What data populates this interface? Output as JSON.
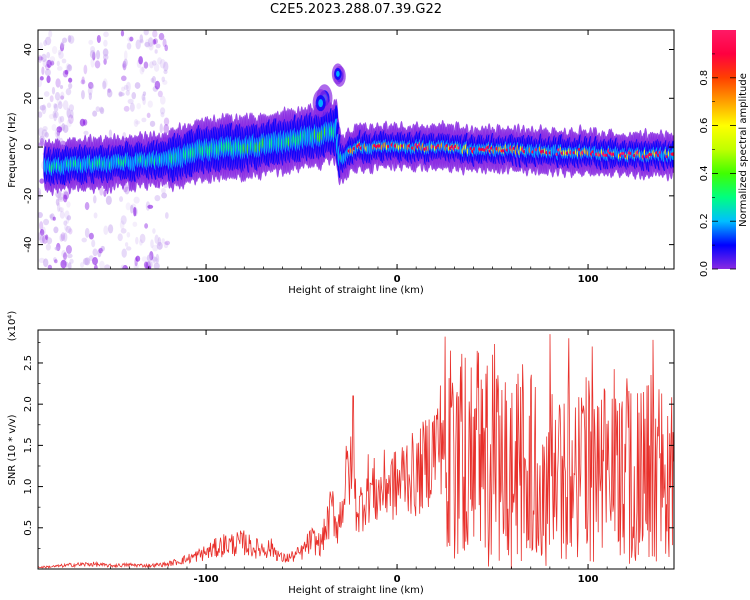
{
  "figure": {
    "title": "C2E5.2023.288.07.39.G22"
  },
  "chart_data": [
    {
      "type": "heatmap",
      "xlabel": "Height of straight line (km)",
      "ylabel": "Frequency (Hz)",
      "xlim": [
        -188,
        145
      ],
      "ylim": [
        -50,
        48
      ],
      "x_ticks": [
        -100,
        0,
        100
      ],
      "y_ticks": [
        -40,
        -20,
        0,
        20,
        40
      ],
      "ridge": {
        "x": [
          -180,
          -160,
          -140,
          -120,
          -100,
          -80,
          -60,
          -40,
          -32,
          -30,
          -20,
          0,
          20,
          40,
          60,
          80,
          100,
          120,
          140
        ],
        "frequency": [
          -8,
          -7,
          -6,
          -5,
          -1,
          0,
          2,
          5,
          7,
          -5,
          0,
          0,
          0,
          -1,
          -1,
          -2,
          -2,
          -3,
          -3
        ]
      },
      "colorbar": {
        "label": "Normalized spectral amplitude",
        "range": [
          0.0,
          1.0
        ],
        "ticks": [
          0.0,
          0.2,
          0.4,
          0.6,
          0.8
        ],
        "tick_labels": [
          "0.0",
          "0.2",
          "0.4",
          "0.6",
          "0.8"
        ]
      },
      "colormap": [
        "#8a2be2",
        "#0000ff",
        "#00bfff",
        "#00ff80",
        "#40ff00",
        "#c0ff00",
        "#ffff00",
        "#ffa000",
        "#ff4000",
        "#ff0040",
        "#ff1a66"
      ]
    },
    {
      "type": "line",
      "xlabel": "Height of straight line (km)",
      "ylabel": "SNR (10 * v/v)",
      "y_multiplier": "(x10⁴)",
      "xlim": [
        -188,
        145
      ],
      "ylim": [
        0,
        2.9
      ],
      "x_ticks": [
        -100,
        0,
        100
      ],
      "y_ticks": [
        0.5,
        1.0,
        1.5,
        2.0,
        2.5
      ],
      "y_tick_labels": [
        "0.5",
        "1.0",
        "1.5",
        "2.0",
        "2.5"
      ],
      "line_color": "#e8302b",
      "series": [
        {
          "x": [
            -188,
            -180,
            -170,
            -160,
            -150,
            -140,
            -130,
            -120,
            -110,
            -100,
            -95,
            -90,
            -85,
            -80,
            -75,
            -70,
            -65,
            -60,
            -55,
            -50,
            -45,
            -40,
            -37,
            -34,
            -31,
            -28,
            -25,
            -22,
            -20,
            -15,
            -10,
            -5,
            0,
            5,
            10,
            15,
            20,
            25,
            28,
            30,
            35,
            40,
            45,
            50,
            55,
            60,
            65,
            70,
            75,
            80,
            85,
            90,
            95,
            100,
            105,
            110,
            115,
            120,
            125,
            130,
            135,
            140,
            143
          ],
          "y": [
            0.02,
            0.03,
            0.05,
            0.06,
            0.04,
            0.05,
            0.04,
            0.06,
            0.12,
            0.2,
            0.25,
            0.3,
            0.3,
            0.32,
            0.25,
            0.25,
            0.25,
            0.12,
            0.15,
            0.2,
            0.35,
            0.3,
            0.5,
            0.75,
            0.5,
            0.9,
            1.25,
            0.85,
            0.7,
            1.0,
            0.9,
            1.05,
            1.0,
            1.2,
            1.1,
            1.3,
            1.5,
            1.7,
            1.8,
            1.5,
            1.4,
            1.6,
            1.35,
            1.5,
            1.3,
            1.2,
            1.4,
            1.3,
            1.1,
            1.25,
            1.1,
            1.3,
            1.2,
            1.25,
            1.1,
            1.2,
            1.3,
            1.2,
            1.1,
            1.2,
            1.3,
            1.1,
            1.2
          ]
        }
      ],
      "peaks": [
        {
          "x": -23,
          "y": 2.1
        },
        {
          "x": 28,
          "y": 2.65
        },
        {
          "x": 50,
          "y": 2.6
        },
        {
          "x": 80,
          "y": 2.85
        },
        {
          "x": 90,
          "y": 2.8
        },
        {
          "x": 102,
          "y": 2.7
        },
        {
          "x": 134,
          "y": 2.78
        }
      ]
    }
  ]
}
